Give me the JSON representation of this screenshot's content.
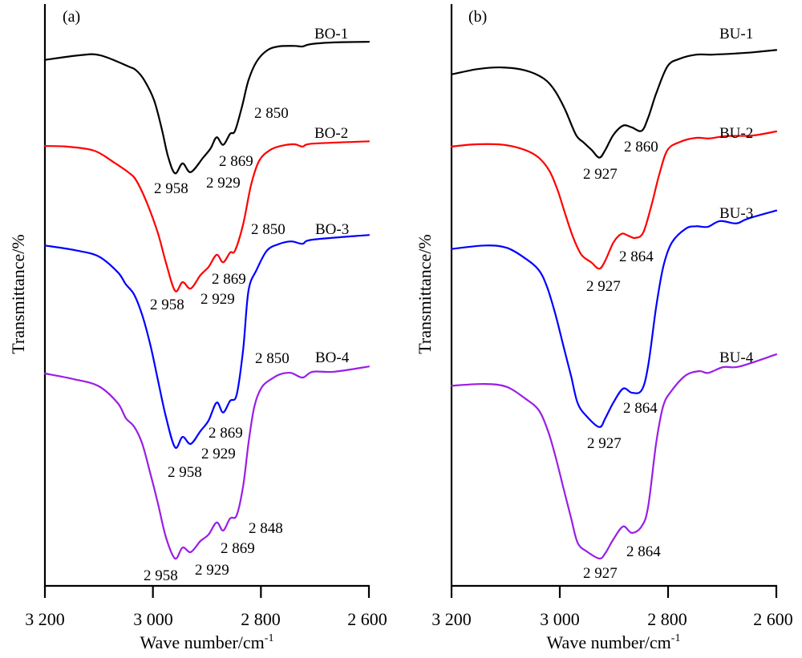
{
  "chart_data": [
    {
      "type": "line",
      "panel_label": "(a)",
      "title": "",
      "xlabel": "Wave number/cm",
      "xlabel_superscript": "-1",
      "ylabel": "Transmittance/%",
      "xlim": [
        3200,
        2600
      ],
      "x_reversed": true,
      "ylim": [
        0,
        100
      ],
      "y_units": "relative transmittance (arbitrary, curves offset)",
      "x_ticks": [
        3200,
        3000,
        2800,
        2600
      ],
      "x_tick_labels": [
        "3 200",
        "3 000",
        "2 800",
        "2 600"
      ],
      "grid": false,
      "legend": "inline labels at right",
      "series": [
        {
          "name": "BO-1",
          "color": "#000000",
          "points": [
            [
              3200,
              90.4
            ],
            [
              3135,
              91.2
            ],
            [
              3098,
              91.2
            ],
            [
              3046,
              89.3
            ],
            [
              3031,
              88.6
            ],
            [
              3016,
              86.9
            ],
            [
              2998,
              83.5
            ],
            [
              2984,
              78.7
            ],
            [
              2972,
              73.8
            ],
            [
              2959,
              70.9
            ],
            [
              2945,
              72.6
            ],
            [
              2930,
              71.1
            ],
            [
              2907,
              73.6
            ],
            [
              2893,
              75.2
            ],
            [
              2882,
              77.1
            ],
            [
              2870,
              75.8
            ],
            [
              2857,
              77.7
            ],
            [
              2848,
              78.2
            ],
            [
              2835,
              82.4
            ],
            [
              2823,
              86.9
            ],
            [
              2808,
              90.1
            ],
            [
              2789,
              92.0
            ],
            [
              2768,
              92.7
            ],
            [
              2738,
              92.8
            ],
            [
              2723,
              92.7
            ],
            [
              2708,
              93.1
            ],
            [
              2664,
              93.4
            ],
            [
              2600,
              93.5
            ]
          ],
          "annotations": [
            "2 850",
            "2 869",
            "2 958",
            "2 929"
          ]
        },
        {
          "name": "BO-2",
          "color": "#ff0000",
          "points": [
            [
              3200,
              75.6
            ],
            [
              3160,
              75.5
            ],
            [
              3109,
              74.8
            ],
            [
              3071,
              72.7
            ],
            [
              3046,
              71.1
            ],
            [
              3031,
              69.7
            ],
            [
              3011,
              65.8
            ],
            [
              2991,
              60.7
            ],
            [
              2976,
              55.6
            ],
            [
              2959,
              50.7
            ],
            [
              2945,
              52.2
            ],
            [
              2930,
              51.1
            ],
            [
              2912,
              53.4
            ],
            [
              2897,
              54.8
            ],
            [
              2882,
              56.9
            ],
            [
              2870,
              55.6
            ],
            [
              2857,
              57.3
            ],
            [
              2848,
              57.6
            ],
            [
              2833,
              62.1
            ],
            [
              2818,
              69.0
            ],
            [
              2803,
              73.1
            ],
            [
              2783,
              74.9
            ],
            [
              2763,
              75.6
            ],
            [
              2738,
              75.9
            ],
            [
              2723,
              75.5
            ],
            [
              2704,
              76.0
            ],
            [
              2600,
              76.4
            ]
          ],
          "annotations": [
            "2 869",
            "2 958",
            "2 929"
          ]
        },
        {
          "name": "BO-3",
          "color": "#0000ff",
          "points": [
            [
              3200,
              58.5
            ],
            [
              3145,
              57.7
            ],
            [
              3100,
              56.6
            ],
            [
              3065,
              53.9
            ],
            [
              3050,
              51.8
            ],
            [
              3035,
              50.1
            ],
            [
              3020,
              46.6
            ],
            [
              3005,
              41.5
            ],
            [
              2991,
              35.5
            ],
            [
              2976,
              29.1
            ],
            [
              2959,
              23.8
            ],
            [
              2945,
              25.6
            ],
            [
              2930,
              24.4
            ],
            [
              2912,
              26.6
            ],
            [
              2897,
              28.4
            ],
            [
              2882,
              31.5
            ],
            [
              2870,
              29.8
            ],
            [
              2857,
              31.8
            ],
            [
              2845,
              32.8
            ],
            [
              2833,
              40.5
            ],
            [
              2823,
              50.7
            ],
            [
              2808,
              54.3
            ],
            [
              2789,
              57.6
            ],
            [
              2768,
              58.7
            ],
            [
              2744,
              59.2
            ],
            [
              2723,
              58.8
            ],
            [
              2704,
              59.5
            ],
            [
              2600,
              60.3
            ]
          ],
          "annotations": [
            "2 850",
            "2 869",
            "2 929",
            "2 958"
          ]
        },
        {
          "name": "BO-4",
          "color": "#9a1ee6",
          "points": [
            [
              3200,
              36.5
            ],
            [
              3145,
              35.5
            ],
            [
              3100,
              34.3
            ],
            [
              3065,
              31.4
            ],
            [
              3050,
              28.8
            ],
            [
              3035,
              27.4
            ],
            [
              3020,
              24.5
            ],
            [
              3005,
              19.4
            ],
            [
              2991,
              14.3
            ],
            [
              2976,
              8.4
            ],
            [
              2959,
              4.7
            ],
            [
              2945,
              6.6
            ],
            [
              2930,
              5.8
            ],
            [
              2912,
              7.7
            ],
            [
              2897,
              8.8
            ],
            [
              2882,
              10.9
            ],
            [
              2870,
              9.5
            ],
            [
              2857,
              11.6
            ],
            [
              2845,
              12.1
            ],
            [
              2833,
              17.1
            ],
            [
              2823,
              24.5
            ],
            [
              2812,
              30.9
            ],
            [
              2798,
              34.2
            ],
            [
              2778,
              35.7
            ],
            [
              2763,
              36.4
            ],
            [
              2744,
              36.6
            ],
            [
              2723,
              35.8
            ],
            [
              2704,
              36.8
            ],
            [
              2664,
              36.8
            ],
            [
              2600,
              37.7
            ]
          ],
          "annotations": [
            "2 850",
            "2 848",
            "2 869",
            "2 929",
            "2 958"
          ]
        }
      ]
    },
    {
      "type": "line",
      "panel_label": "(b)",
      "title": "",
      "xlabel": "Wave number/cm",
      "xlabel_superscript": "-1",
      "ylabel": "Transmittance/%",
      "xlim": [
        3200,
        2600
      ],
      "x_reversed": true,
      "ylim": [
        0,
        100
      ],
      "y_units": "relative transmittance (arbitrary, curves offset)",
      "x_ticks": [
        3200,
        3000,
        2800,
        2600
      ],
      "x_tick_labels": [
        "3 200",
        "3 000",
        "2 800",
        "2 600"
      ],
      "grid": false,
      "legend": "inline labels at right",
      "series": [
        {
          "name": "BU-1",
          "color": "#000000",
          "points": [
            [
              3200,
              87.9
            ],
            [
              3153,
              88.8
            ],
            [
              3108,
              89.1
            ],
            [
              3064,
              88.6
            ],
            [
              3030,
              87.2
            ],
            [
              3009,
              85.1
            ],
            [
              2990,
              81.8
            ],
            [
              2970,
              77.5
            ],
            [
              2956,
              76.2
            ],
            [
              2941,
              74.9
            ],
            [
              2927,
              73.6
            ],
            [
              2916,
              74.9
            ],
            [
              2901,
              77.5
            ],
            [
              2883,
              79.1
            ],
            [
              2867,
              78.8
            ],
            [
              2849,
              78.2
            ],
            [
              2837,
              80.4
            ],
            [
              2822,
              84.6
            ],
            [
              2801,
              89.3
            ],
            [
              2778,
              90.6
            ],
            [
              2748,
              91.3
            ],
            [
              2719,
              91.3
            ],
            [
              2674,
              91.5
            ],
            [
              2644,
              91.7
            ],
            [
              2600,
              92.1
            ]
          ],
          "annotations": [
            "2 860",
            "2 927"
          ]
        },
        {
          "name": "BU-2",
          "color": "#ff0000",
          "points": [
            [
              3200,
              75.5
            ],
            [
              3153,
              75.9
            ],
            [
              3104,
              75.8
            ],
            [
              3064,
              74.9
            ],
            [
              3039,
              73.6
            ],
            [
              3019,
              71.3
            ],
            [
              3004,
              68.0
            ],
            [
              2990,
              63.9
            ],
            [
              2975,
              59.8
            ],
            [
              2960,
              56.9
            ],
            [
              2942,
              55.6
            ],
            [
              2927,
              54.5
            ],
            [
              2916,
              55.9
            ],
            [
              2901,
              59.0
            ],
            [
              2886,
              60.5
            ],
            [
              2874,
              60.2
            ],
            [
              2861,
              59.8
            ],
            [
              2846,
              60.7
            ],
            [
              2831,
              65.3
            ],
            [
              2816,
              70.8
            ],
            [
              2801,
              74.9
            ],
            [
              2778,
              76.3
            ],
            [
              2748,
              77.0
            ],
            [
              2723,
              76.9
            ],
            [
              2693,
              77.3
            ],
            [
              2644,
              77.4
            ],
            [
              2600,
              78.1
            ]
          ],
          "annotations": [
            "2 864",
            "2 927"
          ]
        },
        {
          "name": "BU-3",
          "color": "#0000ff",
          "points": [
            [
              3200,
              57.9
            ],
            [
              3138,
              58.5
            ],
            [
              3098,
              58.1
            ],
            [
              3064,
              56.3
            ],
            [
              3039,
              54.3
            ],
            [
              3024,
              51.5
            ],
            [
              3009,
              47.0
            ],
            [
              2994,
              41.5
            ],
            [
              2979,
              36.0
            ],
            [
              2967,
              31.4
            ],
            [
              2950,
              29.1
            ],
            [
              2927,
              27.3
            ],
            [
              2916,
              28.8
            ],
            [
              2901,
              31.5
            ],
            [
              2883,
              33.9
            ],
            [
              2867,
              33.2
            ],
            [
              2849,
              33.6
            ],
            [
              2837,
              37.7
            ],
            [
              2822,
              47.9
            ],
            [
              2809,
              54.8
            ],
            [
              2793,
              59.0
            ],
            [
              2767,
              61.4
            ],
            [
              2748,
              61.8
            ],
            [
              2727,
              61.7
            ],
            [
              2704,
              62.7
            ],
            [
              2674,
              62.3
            ],
            [
              2653,
              63.1
            ],
            [
              2600,
              64.5
            ]
          ],
          "annotations": [
            "2 864",
            "2 927"
          ]
        },
        {
          "name": "BU-4",
          "color": "#9a1ee6",
          "points": [
            [
              3200,
              34.4
            ],
            [
              3138,
              34.7
            ],
            [
              3098,
              34.2
            ],
            [
              3064,
              32.2
            ],
            [
              3039,
              30.2
            ],
            [
              3022,
              26.7
            ],
            [
              3009,
              22.6
            ],
            [
              2994,
              17.1
            ],
            [
              2979,
              11.6
            ],
            [
              2967,
              7.4
            ],
            [
              2950,
              5.9
            ],
            [
              2927,
              4.7
            ],
            [
              2916,
              5.6
            ],
            [
              2901,
              8.0
            ],
            [
              2883,
              10.2
            ],
            [
              2867,
              9.1
            ],
            [
              2849,
              10.2
            ],
            [
              2837,
              13.5
            ],
            [
              2822,
              24.5
            ],
            [
              2809,
              30.9
            ],
            [
              2793,
              33.6
            ],
            [
              2767,
              36.2
            ],
            [
              2742,
              36.9
            ],
            [
              2726,
              36.6
            ],
            [
              2698,
              37.6
            ],
            [
              2668,
              37.7
            ],
            [
              2600,
              39.8
            ]
          ],
          "annotations": [
            "2 864",
            "2 927"
          ]
        }
      ]
    }
  ]
}
